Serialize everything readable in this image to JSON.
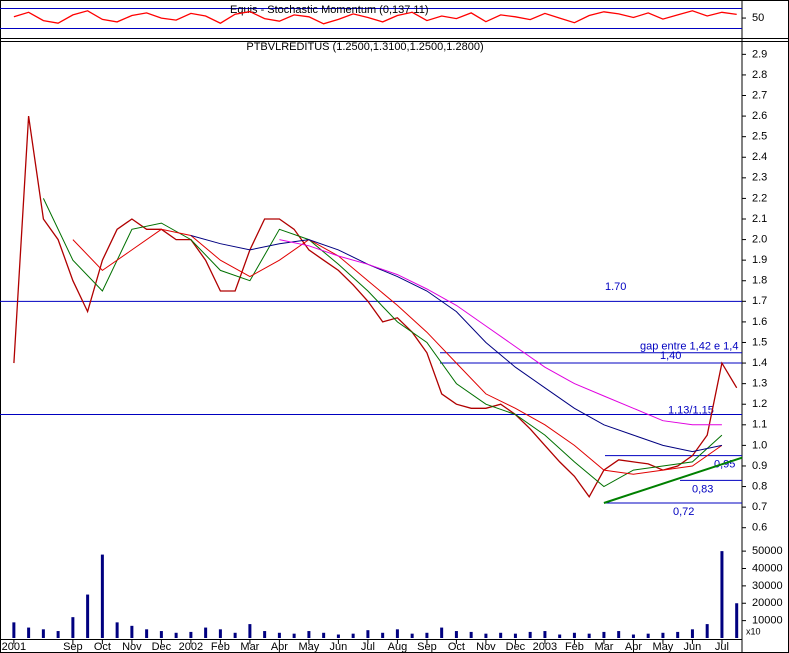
{
  "chart_data": [
    {
      "type": "line",
      "title": "Equis - Stochastic Momentum (0,137.11)",
      "x": [
        0,
        0.5,
        1,
        1.5,
        2,
        2.5,
        3,
        3.5,
        4,
        4.5,
        5,
        5.5,
        6,
        6.5,
        7,
        7.5,
        8,
        8.5,
        9,
        9.5,
        10,
        10.5,
        11,
        11.5,
        12,
        12.5,
        13,
        13.5,
        14,
        14.5,
        15,
        15.5,
        16,
        16.5,
        17,
        17.5,
        18,
        18.5,
        19,
        19.5,
        20,
        20.5,
        21,
        21.5,
        22,
        22.5,
        23,
        23.5,
        24,
        24.5
      ],
      "series": [
        {
          "color": "#ff0000",
          "values": [
            55,
            72,
            40,
            30,
            62,
            78,
            45,
            35,
            60,
            70,
            50,
            42,
            68,
            58,
            30,
            65,
            75,
            48,
            38,
            62,
            55,
            28,
            45,
            66,
            52,
            35,
            60,
            72,
            40,
            58,
            48,
            70,
            36,
            62,
            55,
            44,
            68,
            50,
            32,
            60,
            74,
            66,
            52,
            70,
            46,
            62,
            78,
            58,
            72,
            64
          ]
        }
      ],
      "xlim": [
        -0.47,
        24.68
      ],
      "ylim": [
        -23,
        108
      ],
      "yticks": [
        50
      ]
    },
    {
      "type": "line",
      "title": "PTBVLREDITUS (1.2500,1.3100,1.2500,1.2800)",
      "x": [
        0,
        0.5,
        1,
        1.5,
        2,
        2.5,
        3,
        3.5,
        4,
        4.5,
        5,
        5.5,
        6,
        6.5,
        7,
        7.5,
        8,
        8.5,
        9,
        9.5,
        10,
        10.5,
        11,
        11.5,
        12,
        12.5,
        13,
        13.5,
        14,
        14.5,
        15,
        15.5,
        16,
        16.5,
        17,
        17.5,
        18,
        18.5,
        19,
        19.5,
        20,
        20.5,
        21,
        21.5,
        22,
        22.5,
        23,
        23.5,
        24,
        24.5
      ],
      "series": [
        {
          "color": "#b00000",
          "values": [
            1.4,
            2.6,
            2.1,
            2.0,
            1.8,
            1.65,
            1.9,
            2.05,
            2.1,
            2.05,
            2.05,
            2.0,
            2.0,
            1.9,
            1.75,
            1.75,
            1.95,
            2.1,
            2.1,
            2.05,
            1.95,
            1.9,
            1.85,
            1.78,
            1.7,
            1.6,
            1.62,
            1.55,
            1.45,
            1.25,
            1.2,
            1.18,
            1.18,
            1.2,
            1.15,
            1.08,
            1.0,
            0.92,
            0.85,
            0.75,
            0.88,
            0.93,
            0.92,
            0.91,
            0.88,
            0.9,
            0.95,
            1.05,
            1.4,
            1.28
          ]
        },
        {
          "color": "#007000",
          "x": [
            0,
            1,
            2,
            3,
            4,
            5,
            6,
            7,
            8,
            9,
            10,
            11,
            12,
            13,
            14,
            15,
            16,
            17,
            18,
            19,
            20,
            21,
            22,
            23,
            24
          ],
          "values": [
            null,
            2.2,
            1.9,
            1.75,
            2.05,
            2.08,
            2.0,
            1.85,
            1.8,
            2.05,
            2.0,
            1.88,
            1.75,
            1.6,
            1.5,
            1.3,
            1.2,
            1.15,
            1.05,
            0.92,
            0.8,
            0.88,
            0.9,
            0.92,
            1.05
          ]
        },
        {
          "color": "#e00000",
          "x": [
            0,
            1,
            2,
            3,
            4,
            5,
            6,
            7,
            8,
            9,
            10,
            11,
            12,
            13,
            14,
            15,
            16,
            17,
            18,
            19,
            20,
            21,
            22,
            23,
            24
          ],
          "values": [
            null,
            null,
            2.0,
            1.85,
            1.95,
            2.05,
            2.02,
            1.9,
            1.82,
            1.9,
            2.0,
            1.92,
            1.8,
            1.68,
            1.55,
            1.4,
            1.25,
            1.18,
            1.1,
            1.0,
            0.88,
            0.86,
            0.88,
            0.9,
            1.0
          ]
        },
        {
          "color": "#000080",
          "x": [
            0,
            1,
            2,
            3,
            4,
            5,
            6,
            7,
            8,
            9,
            10,
            11,
            12,
            13,
            14,
            15,
            16,
            17,
            18,
            19,
            20,
            21,
            22,
            23,
            24
          ],
          "values": [
            null,
            null,
            null,
            null,
            null,
            null,
            2.02,
            1.98,
            1.95,
            1.98,
            2.0,
            1.95,
            1.88,
            1.82,
            1.75,
            1.65,
            1.5,
            1.38,
            1.28,
            1.18,
            1.1,
            1.05,
            1.0,
            0.97,
            1.0
          ]
        },
        {
          "color": "#e000e0",
          "x": [
            0,
            1,
            2,
            3,
            4,
            5,
            6,
            7,
            8,
            9,
            10,
            11,
            12,
            13,
            14,
            15,
            16,
            17,
            18,
            19,
            20,
            21,
            22,
            23,
            24
          ],
          "values": [
            null,
            null,
            null,
            null,
            null,
            null,
            null,
            null,
            null,
            2.0,
            1.97,
            1.92,
            1.88,
            1.83,
            1.76,
            1.68,
            1.58,
            1.48,
            1.38,
            1.3,
            1.24,
            1.18,
            1.12,
            1.1,
            1.1
          ]
        }
      ],
      "annotations": [
        {
          "value": 1.45,
          "text": "gap entre 1,42 e 1,4"
        },
        {
          "value": 1.7,
          "text": "1.70"
        },
        {
          "value": 1.4,
          "text": "1,40"
        },
        {
          "value": 1.15,
          "text": "1,13/1,15"
        },
        {
          "value": 0.95,
          "text": "0,95"
        },
        {
          "value": 0.83,
          "text": "0,83"
        },
        {
          "value": 0.72,
          "text": "0,72"
        }
      ],
      "trendline": {
        "color": "#008000",
        "x": [
          20,
          24.68
        ],
        "values": [
          0.72,
          0.94
        ]
      },
      "xlim": [
        -0.47,
        24.68
      ],
      "ylim": [
        0.55,
        2.96
      ],
      "yticks": [
        0.6,
        0.7,
        0.8,
        0.9,
        {
          "value": 1,
          "label": "1.0"
        },
        1.1,
        1.2,
        1.3,
        1.4,
        1.5,
        1.6,
        1.7,
        1.8,
        1.9,
        {
          "value": 2,
          "label": "2.0"
        },
        2.1,
        2.2,
        2.3,
        2.4,
        2.5,
        2.6,
        2.7,
        2.8,
        2.9
      ]
    },
    {
      "type": "bar",
      "color": "#000080",
      "x": [
        0,
        0.5,
        1,
        1.5,
        2,
        2.5,
        3,
        3.5,
        4,
        4.5,
        5,
        5.5,
        6,
        6.5,
        7,
        7.5,
        8,
        8.5,
        9,
        9.5,
        10,
        10.5,
        11,
        11.5,
        12,
        12.5,
        13,
        13.5,
        14,
        14.5,
        15,
        15.5,
        16,
        16.5,
        17,
        17.5,
        18,
        18.5,
        19,
        19.5,
        20,
        20.5,
        21,
        21.5,
        22,
        22.5,
        23,
        23.5,
        24,
        24.5
      ],
      "values": [
        9000,
        6000,
        5000,
        4000,
        12000,
        25000,
        48000,
        9000,
        7000,
        5000,
        4000,
        3000,
        3500,
        6000,
        5000,
        3000,
        8000,
        4000,
        3000,
        2500,
        4000,
        3000,
        2000,
        2500,
        4500,
        3000,
        5000,
        2500,
        3000,
        6000,
        4000,
        3500,
        2500,
        3000,
        2500,
        3500,
        4000,
        2000,
        3000,
        2500,
        3500,
        4000,
        2000,
        2500,
        3000,
        3500,
        5000,
        8000,
        50000,
        20000
      ],
      "xlim": [
        -0.47,
        24.68
      ],
      "ylim": [
        0,
        56400
      ],
      "yticks": [
        10000,
        20000,
        30000,
        40000,
        50000
      ],
      "axis_note": "x10",
      "xticks": [
        {
          "value": 0,
          "label": "2001"
        },
        {
          "value": 2,
          "label": "Sep"
        },
        {
          "value": 3,
          "label": "Oct"
        },
        {
          "value": 4,
          "label": "Nov"
        },
        {
          "value": 5,
          "label": "Dec"
        },
        {
          "value": 6,
          "label": "2002"
        },
        {
          "value": 7,
          "label": "Feb"
        },
        {
          "value": 8,
          "label": "Mar"
        },
        {
          "value": 9,
          "label": "Apr"
        },
        {
          "value": 10,
          "label": "May"
        },
        {
          "value": 11,
          "label": "Jun"
        },
        {
          "value": 12,
          "label": "Jul"
        },
        {
          "value": 13,
          "label": "Aug"
        },
        {
          "value": 14,
          "label": "Sep"
        },
        {
          "value": 15,
          "label": "Oct"
        },
        {
          "value": 16,
          "label": "Nov"
        },
        {
          "value": 17,
          "label": "Dec"
        },
        {
          "value": 18,
          "label": "2003"
        },
        {
          "value": 19,
          "label": "Feb"
        },
        {
          "value": 20,
          "label": "Mar"
        },
        {
          "value": 21,
          "label": "Apr"
        },
        {
          "value": 22,
          "label": "May"
        },
        {
          "value": 23,
          "label": "Jun"
        },
        {
          "value": 24,
          "label": "Jul"
        }
      ]
    }
  ]
}
